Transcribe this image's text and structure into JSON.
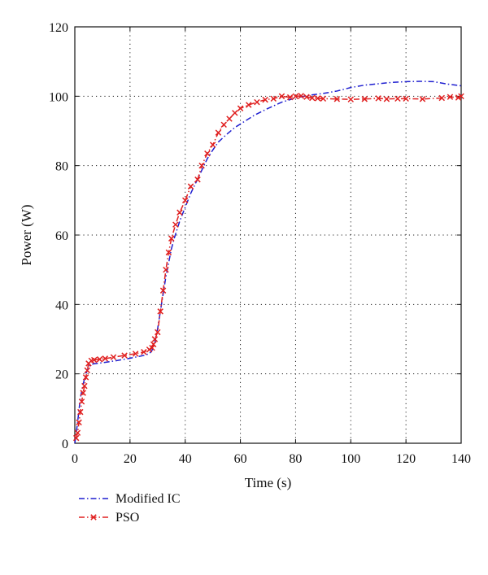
{
  "chart_data": {
    "type": "line",
    "title": "",
    "xlabel": "Time (s)",
    "ylabel": "Power (W)",
    "xlim": [
      0,
      140
    ],
    "ylim": [
      0,
      120
    ],
    "xticks": [
      0,
      20,
      40,
      60,
      80,
      100,
      120,
      140
    ],
    "yticks": [
      0,
      20,
      40,
      60,
      80,
      100,
      120
    ],
    "grid": true,
    "legend_position": "below-left",
    "series": [
      {
        "name": "Modified IC",
        "color": "#1f1fd0",
        "line_style": "dash-dot",
        "marker": "none",
        "x": [
          0,
          1,
          2,
          3,
          4,
          5,
          6,
          8,
          10,
          15,
          20,
          25,
          27,
          28,
          29,
          30,
          31,
          32,
          33,
          34,
          35,
          36,
          38,
          40,
          42,
          45,
          48,
          50,
          52,
          55,
          58,
          60,
          65,
          70,
          75,
          80,
          85,
          90,
          95,
          100,
          105,
          110,
          115,
          120,
          125,
          130,
          135,
          140
        ],
        "y": [
          0,
          6,
          13,
          17,
          20,
          22,
          22.8,
          23,
          23.2,
          23.8,
          24.5,
          25.3,
          25.8,
          26.8,
          29,
          33,
          38,
          43,
          48,
          52,
          56,
          59,
          64,
          68,
          72,
          77,
          82,
          84.5,
          86.8,
          89,
          91,
          92,
          94.5,
          96.5,
          98.3,
          99.5,
          100.3,
          100.8,
          101.5,
          102.5,
          103.2,
          103.6,
          104,
          104.2,
          104.3,
          104.2,
          103.5,
          103
        ]
      },
      {
        "name": "PSO",
        "color": "#e02020",
        "line_style": "dash-dot",
        "marker": "x",
        "x": [
          0.5,
          1,
          1.5,
          2,
          2.5,
          3,
          3.5,
          4,
          4.5,
          5,
          6,
          7,
          9,
          11,
          14,
          18,
          22,
          25,
          27,
          28,
          28.5,
          29,
          30,
          31,
          32,
          33,
          34,
          35,
          36.5,
          38,
          40,
          42,
          44.5,
          46,
          48,
          50,
          52,
          54,
          56,
          58,
          60,
          63,
          66,
          69,
          72,
          75,
          78,
          80,
          82,
          84,
          86,
          88,
          90,
          95,
          100,
          105,
          110,
          113,
          117,
          120,
          126,
          133,
          136,
          139,
          140
        ],
        "y": [
          1.5,
          3,
          6,
          9,
          12,
          14.5,
          16.5,
          19,
          21,
          23,
          23.8,
          24,
          24.2,
          24.4,
          24.8,
          25.3,
          25.8,
          26.3,
          27,
          27.5,
          28.5,
          30,
          32,
          38,
          44,
          50,
          55,
          59,
          63,
          66.5,
          70,
          74,
          76,
          80,
          83.5,
          86,
          89.5,
          91.8,
          93.5,
          95.2,
          96.5,
          97.5,
          98.3,
          99,
          99.3,
          100,
          99.7,
          100,
          100.1,
          99.8,
          99.5,
          99.4,
          99.3,
          99.2,
          99.1,
          99.2,
          99.4,
          99.2,
          99.3,
          99.3,
          99.2,
          99.5,
          99.8,
          99.6,
          100
        ]
      }
    ]
  }
}
